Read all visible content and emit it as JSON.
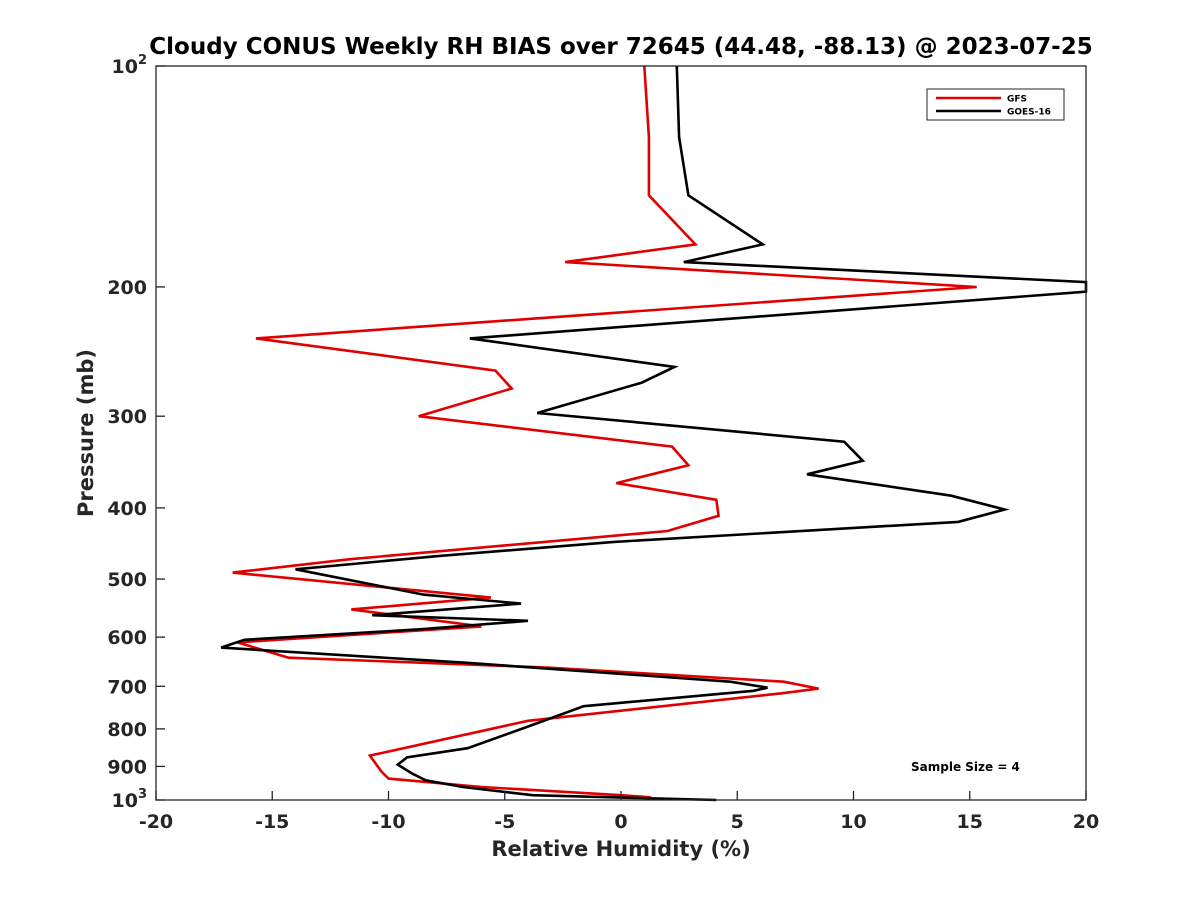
{
  "chart_data": {
    "type": "line",
    "title": "Cloudy CONUS Weekly RH BIAS over 72645 (44.48, -88.13) @ 2023-07-25",
    "xlabel": "Relative Humidity (%)",
    "ylabel": "Pressure (mb)",
    "xlim": [
      -20,
      20
    ],
    "ylim": [
      100,
      1000
    ],
    "y_scale": "log",
    "y_reversed": true,
    "x_ticks": [
      -20,
      -15,
      -10,
      -5,
      0,
      5,
      10,
      15,
      20
    ],
    "x_tick_labels": [
      "-20",
      "-15",
      "-10",
      "-5",
      "0",
      "5",
      "10",
      "15",
      "20"
    ],
    "y_ticks": [
      100,
      200,
      300,
      400,
      500,
      600,
      700,
      800,
      900,
      1000
    ],
    "y_tick_labels": [
      {
        "base": "10",
        "sup": "2"
      },
      {
        "base": "200",
        "sup": ""
      },
      {
        "base": "300",
        "sup": ""
      },
      {
        "base": "400",
        "sup": ""
      },
      {
        "base": "500",
        "sup": ""
      },
      {
        "base": "600",
        "sup": ""
      },
      {
        "base": "700",
        "sup": ""
      },
      {
        "base": "800",
        "sup": ""
      },
      {
        "base": "900",
        "sup": ""
      },
      {
        "base": "10",
        "sup": "3"
      }
    ],
    "grid": false,
    "legend_position": "top-right",
    "annotation": "Sample Size = 4",
    "series": [
      {
        "name": "GFS",
        "color": "#e00000",
        "points": [
          [
            1.0,
            100
          ],
          [
            1.2,
            125
          ],
          [
            1.2,
            150
          ],
          [
            3.2,
            175
          ],
          [
            -2.4,
            185
          ],
          [
            15.3,
            200
          ],
          [
            -15.7,
            235
          ],
          [
            -5.4,
            260
          ],
          [
            -4.7,
            275
          ],
          [
            -8.7,
            300
          ],
          [
            2.2,
            330
          ],
          [
            2.9,
            350
          ],
          [
            -0.2,
            370
          ],
          [
            4.1,
            390
          ],
          [
            4.2,
            410
          ],
          [
            2.0,
            430
          ],
          [
            -11.7,
            470
          ],
          [
            -16.7,
            490
          ],
          [
            -5.6,
            530
          ],
          [
            -11.6,
            550
          ],
          [
            -6.0,
            580
          ],
          [
            -16.5,
            610
          ],
          [
            -14.3,
            640
          ],
          [
            -3.2,
            660
          ],
          [
            7.0,
            690
          ],
          [
            8.5,
            705
          ],
          [
            7.0,
            715
          ],
          [
            -4.0,
            780
          ],
          [
            -10.8,
            870
          ],
          [
            -10.3,
            915
          ],
          [
            -10.0,
            935
          ],
          [
            -6.0,
            960
          ],
          [
            0.0,
            985
          ],
          [
            1.3,
            992
          ]
        ]
      },
      {
        "name": "GOES-16",
        "color": "#000000",
        "points": [
          [
            2.4,
            100
          ],
          [
            2.5,
            125
          ],
          [
            2.9,
            150
          ],
          [
            6.1,
            175
          ],
          [
            2.7,
            185
          ],
          [
            20.0,
            197
          ],
          [
            20.0,
            203
          ],
          [
            -6.5,
            235
          ],
          [
            2.3,
            257
          ],
          [
            0.9,
            270
          ],
          [
            -3.6,
            297
          ],
          [
            9.6,
            325
          ],
          [
            10.4,
            345
          ],
          [
            8.0,
            360
          ],
          [
            14.2,
            385
          ],
          [
            16.5,
            402
          ],
          [
            14.5,
            418
          ],
          [
            -0.3,
            445
          ],
          [
            -7.8,
            465
          ],
          [
            -14.0,
            485
          ],
          [
            -8.5,
            525
          ],
          [
            -4.3,
            540
          ],
          [
            -10.7,
            560
          ],
          [
            -4.0,
            570
          ],
          [
            -8.5,
            585
          ],
          [
            -16.2,
            605
          ],
          [
            -17.2,
            620
          ],
          [
            -6.7,
            650
          ],
          [
            4.7,
            690
          ],
          [
            6.3,
            703
          ],
          [
            5.7,
            710
          ],
          [
            -1.6,
            745
          ],
          [
            -3.8,
            790
          ],
          [
            -6.6,
            850
          ],
          [
            -9.2,
            875
          ],
          [
            -9.6,
            895
          ],
          [
            -9.0,
            920
          ],
          [
            -8.4,
            940
          ],
          [
            -6.8,
            960
          ],
          [
            -3.8,
            985
          ],
          [
            4.1,
            1000
          ]
        ]
      }
    ]
  }
}
